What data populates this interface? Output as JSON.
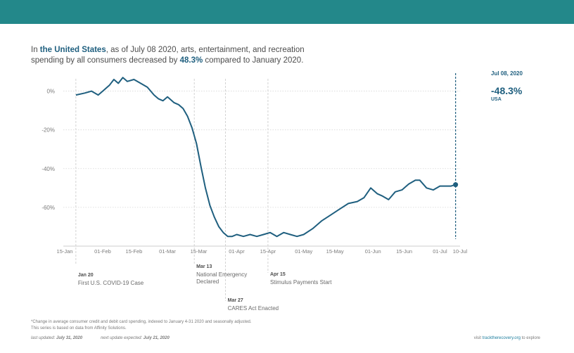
{
  "headline": {
    "part1": "In ",
    "location": "the United States",
    "part2": ", as of July 08 2020, arts, entertainment, and recreation",
    "part3": "spending by all consumers decreased by ",
    "pct": "48.3%",
    "part4": " compared to January 2020."
  },
  "callout": {
    "date": "Jul 08, 2020",
    "value": "-48.3%",
    "label": "USA"
  },
  "events": [
    {
      "date": "Jan 20",
      "label_lines": [
        "First U.S. COVID-19 Case"
      ]
    },
    {
      "date": "Mar 13",
      "label_lines": [
        "National Emergency",
        "Declared"
      ]
    },
    {
      "date": "Mar 27",
      "label_lines": [
        "CARES Act Enacted"
      ]
    },
    {
      "date": "Apr 15",
      "label_lines": [
        "Stimulus Payments Start"
      ]
    }
  ],
  "footnote": {
    "line1": "*Change in average consumer credit and debit card spending, indexed to January 4-31 2020 and seasonally adjusted.",
    "line2": "This series is based on data from Affinity Solutions."
  },
  "updated": {
    "last_label": "last updated:",
    "last_value": "July 31, 2020",
    "next_label": "next update expected:",
    "next_value": "July 21, 2020"
  },
  "visit": {
    "prefix": "visit ",
    "link": "tracktherecovery.org",
    "suffix": " to explore"
  },
  "chart_data": {
    "type": "line",
    "title": "",
    "xlabel": "",
    "ylabel": "",
    "xlim": [
      "2020-01-15",
      "2020-07-10"
    ],
    "ylim": [
      -80,
      10
    ],
    "x_ticks": [
      "15-Jan",
      "01-Feb",
      "15-Feb",
      "01-Mar",
      "15-Mar",
      "01-Apr",
      "15-Apr",
      "01-May",
      "15-May",
      "01-Jun",
      "15-Jun",
      "01-Jul",
      "10-Jul"
    ],
    "y_ticks": [
      {
        "value": 0,
        "label": "0%"
      },
      {
        "value": -20,
        "label": "-20%"
      },
      {
        "value": -40,
        "label": "-40%"
      },
      {
        "value": -60,
        "label": "-60%"
      }
    ],
    "grid": "horizontal-dotted",
    "event_lines": [
      "2020-01-20",
      "2020-03-13",
      "2020-03-27",
      "2020-04-15"
    ],
    "marker_line": "2020-07-08",
    "series": [
      {
        "color": "#1f5f7f",
        "x": [
          "2020-01-20",
          "2020-01-24",
          "2020-01-27",
          "2020-01-30",
          "2020-02-01",
          "2020-02-04",
          "2020-02-06",
          "2020-02-08",
          "2020-02-10",
          "2020-02-12",
          "2020-02-15",
          "2020-02-18",
          "2020-02-21",
          "2020-02-24",
          "2020-02-26",
          "2020-02-28",
          "2020-03-01",
          "2020-03-04",
          "2020-03-06",
          "2020-03-08",
          "2020-03-10",
          "2020-03-12",
          "2020-03-14",
          "2020-03-16",
          "2020-03-18",
          "2020-03-20",
          "2020-03-22",
          "2020-03-24",
          "2020-03-26",
          "2020-03-28",
          "2020-03-30",
          "2020-04-01",
          "2020-04-04",
          "2020-04-07",
          "2020-04-10",
          "2020-04-13",
          "2020-04-16",
          "2020-04-19",
          "2020-04-22",
          "2020-04-25",
          "2020-04-28",
          "2020-05-01",
          "2020-05-05",
          "2020-05-09",
          "2020-05-13",
          "2020-05-17",
          "2020-05-21",
          "2020-05-25",
          "2020-05-28",
          "2020-05-31",
          "2020-06-03",
          "2020-06-05",
          "2020-06-08",
          "2020-06-11",
          "2020-06-14",
          "2020-06-17",
          "2020-06-20",
          "2020-06-22",
          "2020-06-25",
          "2020-06-28",
          "2020-07-01",
          "2020-07-04",
          "2020-07-06",
          "2020-07-08"
        ],
        "values": [
          -2,
          -1,
          0,
          -2,
          0,
          3,
          6,
          4,
          7,
          5,
          6,
          4,
          2,
          -2,
          -4,
          -5,
          -3,
          -6,
          -7,
          -9,
          -13,
          -19,
          -27,
          -39,
          -50,
          -59,
          -65,
          -70,
          -73,
          -75,
          -75,
          -74,
          -75,
          -74,
          -75,
          -74,
          -73,
          -75,
          -73,
          -74,
          -75,
          -74,
          -71,
          -67,
          -64,
          -61,
          -58,
          -57,
          -55,
          -50,
          -53,
          -54,
          -56,
          -52,
          -51,
          -48,
          -46,
          -46,
          -50,
          -51,
          -49,
          -49,
          -49,
          -48.3
        ]
      }
    ]
  }
}
